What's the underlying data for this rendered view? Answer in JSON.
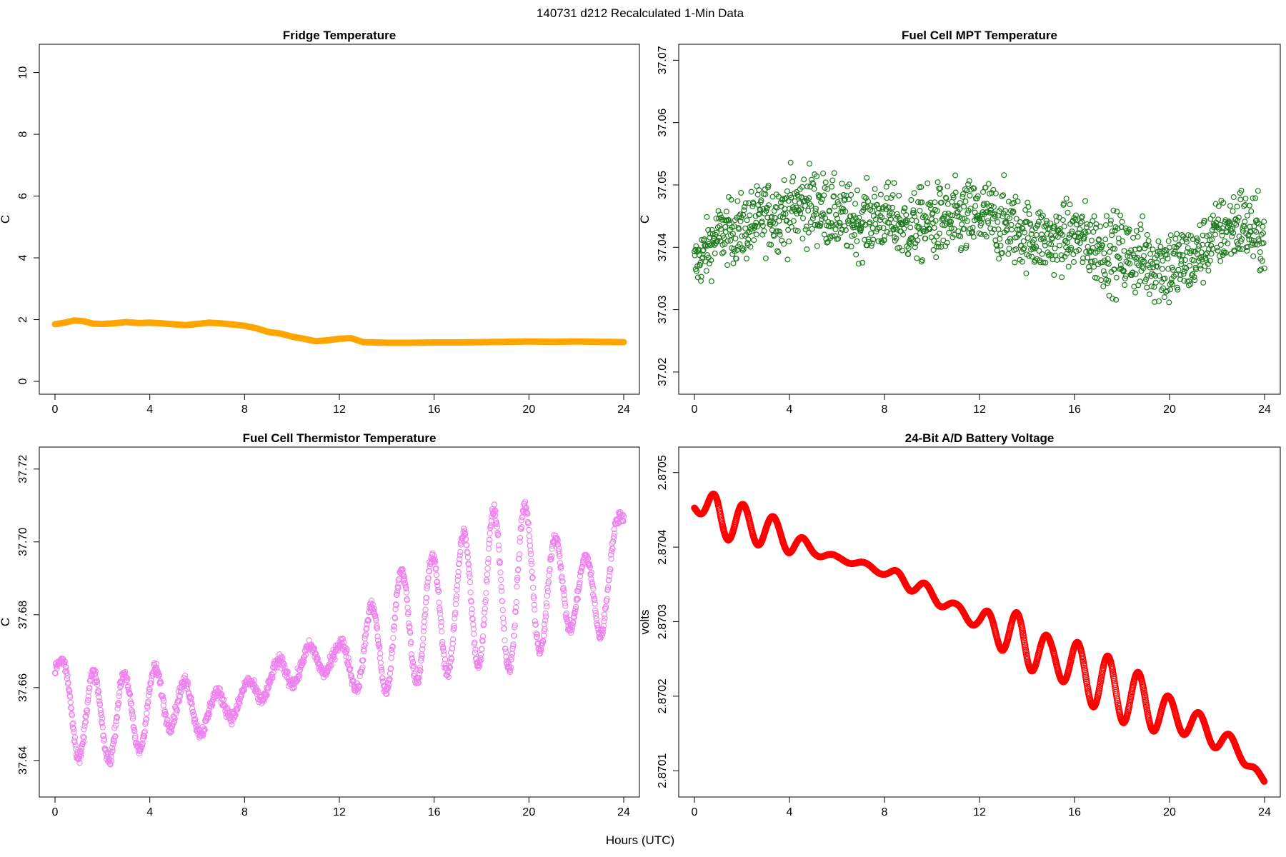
{
  "figure": {
    "title": "140731   d212   Recalculated 1-Min Data",
    "xlabel": "Hours (UTC)"
  },
  "chart_data": [
    {
      "type": "line",
      "title": "Fridge Temperature",
      "ylabel": "C",
      "xlabel": "",
      "xlim": [
        0,
        24
      ],
      "ylim": [
        0,
        10.5
      ],
      "xticks": [
        0,
        4,
        8,
        12,
        16,
        20,
        24
      ],
      "yticks": [
        0,
        2,
        4,
        6,
        8,
        10
      ],
      "ytick_labels": [
        "0",
        "2",
        "4",
        "6",
        "8",
        "10"
      ],
      "color": "#FFA500",
      "marker": "filled-thick-line",
      "x": [
        0,
        0.4,
        0.8,
        1.2,
        1.6,
        2.0,
        2.5,
        3.0,
        3.5,
        4.0,
        4.5,
        5.0,
        5.5,
        6.0,
        6.5,
        7.0,
        7.5,
        8.0,
        8.5,
        9.0,
        9.5,
        10.0,
        10.5,
        11.0,
        11.5,
        12.0,
        12.5,
        13.0,
        14,
        15,
        16,
        17,
        18,
        19,
        20,
        21,
        22,
        23,
        24
      ],
      "y": [
        1.85,
        1.9,
        1.97,
        1.95,
        1.87,
        1.86,
        1.88,
        1.92,
        1.89,
        1.9,
        1.88,
        1.85,
        1.82,
        1.86,
        1.9,
        1.88,
        1.84,
        1.8,
        1.72,
        1.6,
        1.55,
        1.45,
        1.38,
        1.3,
        1.33,
        1.38,
        1.4,
        1.27,
        1.25,
        1.25,
        1.26,
        1.26,
        1.27,
        1.28,
        1.29,
        1.28,
        1.29,
        1.28,
        1.27
      ]
    },
    {
      "type": "scatter",
      "title": "Fuel Cell MPT Temperature",
      "ylabel": "C",
      "xlabel": "",
      "xlim": [
        0,
        24
      ],
      "ylim": [
        37.0185,
        37.0705
      ],
      "xticks": [
        0,
        4,
        8,
        12,
        16,
        20,
        24
      ],
      "yticks": [
        37.02,
        37.03,
        37.04,
        37.05,
        37.06,
        37.07
      ],
      "ytick_labels": [
        "37.02",
        "37.03",
        "37.04",
        "37.05",
        "37.06",
        "37.07"
      ],
      "color": "#1E7B1E",
      "marker": "open-circle",
      "x": [
        0,
        1,
        2,
        3,
        4,
        5,
        6,
        7,
        8,
        9,
        10,
        11,
        12,
        13,
        14,
        15,
        16,
        17,
        18,
        19,
        20,
        21,
        22,
        23,
        24
      ],
      "y": [
        37.037,
        37.042,
        37.043,
        37.045,
        37.046,
        37.047,
        37.045,
        37.044,
        37.045,
        37.043,
        37.044,
        37.044,
        37.045,
        37.044,
        37.042,
        37.041,
        37.042,
        37.04,
        37.039,
        37.038,
        37.037,
        37.038,
        37.042,
        37.044,
        37.041
      ],
      "spread": [
        0.006,
        0.006,
        0.007,
        0.007,
        0.008,
        0.008,
        0.007,
        0.007,
        0.007,
        0.007,
        0.008,
        0.008,
        0.008,
        0.008,
        0.007,
        0.007,
        0.007,
        0.008,
        0.008,
        0.008,
        0.009,
        0.007,
        0.007,
        0.008,
        0.007
      ]
    },
    {
      "type": "scatter",
      "title": "Fuel Cell Thermistor Temperature",
      "ylabel": "C",
      "xlabel": "",
      "xlim": [
        0,
        24
      ],
      "ylim": [
        37.6335,
        37.7225
      ],
      "xticks": [
        0,
        4,
        8,
        12,
        16,
        20,
        24
      ],
      "yticks": [
        37.64,
        37.66,
        37.68,
        37.7,
        37.72
      ],
      "ytick_labels": [
        "37.64",
        "37.66",
        "37.68",
        "37.70",
        "37.72"
      ],
      "color": "#EE82EE",
      "marker": "open-circle",
      "x": [
        0,
        1,
        2,
        3,
        4,
        5,
        6,
        7,
        8,
        9,
        10,
        11,
        12,
        13,
        14,
        15,
        16,
        17,
        18,
        19,
        20,
        21,
        22,
        23,
        24
      ],
      "y": [
        37.665,
        37.652,
        37.652,
        37.652,
        37.655,
        37.658,
        37.652,
        37.655,
        37.657,
        37.662,
        37.665,
        37.668,
        37.668,
        37.668,
        37.675,
        37.677,
        37.68,
        37.682,
        37.688,
        37.686,
        37.69,
        37.686,
        37.688,
        37.683,
        37.705
      ],
      "amplitude": [
        0.004,
        0.012,
        0.012,
        0.012,
        0.01,
        0.008,
        0.005,
        0.004,
        0.004,
        0.004,
        0.004,
        0.004,
        0.004,
        0.01,
        0.016,
        0.016,
        0.016,
        0.018,
        0.022,
        0.022,
        0.02,
        0.016,
        0.01,
        0.01,
        0.006
      ]
    },
    {
      "type": "line",
      "title": "24-Bit A/D Battery Voltage",
      "ylabel": "volts",
      "xlabel": "",
      "xlim": [
        0,
        24
      ],
      "ylim": [
        2.870082,
        2.870517
      ],
      "xticks": [
        0,
        4,
        8,
        12,
        16,
        20,
        24
      ],
      "yticks": [
        2.8701,
        2.8702,
        2.8703,
        2.8704,
        2.8705
      ],
      "ytick_labels": [
        "2.8701",
        "2.8702",
        "2.8703",
        "2.8704",
        "2.8705"
      ],
      "color": "#FF0000",
      "marker": "open-circle",
      "x": [
        0,
        1,
        2,
        3,
        4,
        5,
        6,
        7,
        8,
        9,
        10,
        11,
        12,
        13,
        14,
        15,
        16,
        17,
        18,
        19,
        20,
        21,
        22,
        23,
        24
      ],
      "y": [
        2.870455,
        2.870445,
        2.87043,
        2.870425,
        2.87041,
        2.870395,
        2.870385,
        2.870378,
        2.870366,
        2.870355,
        2.870335,
        2.870318,
        2.8703,
        2.87029,
        2.87027,
        2.870255,
        2.87024,
        2.87022,
        2.870205,
        2.87019,
        2.870175,
        2.870165,
        2.870145,
        2.870125,
        2.870085
      ],
      "amplitude": [
        3e-06,
        3e-05,
        2.8e-05,
        2.2e-05,
        1.8e-05,
        6e-06,
        3e-06,
        3e-06,
        4e-06,
        1.2e-05,
        1e-05,
        6e-06,
        1.2e-05,
        3e-05,
        3.6e-05,
        2.2e-05,
        3.4e-05,
        4e-05,
        4e-05,
        3.6e-05,
        2.4e-05,
        1.8e-05,
        1.6e-05,
        1.2e-05,
        0.0
      ]
    }
  ]
}
